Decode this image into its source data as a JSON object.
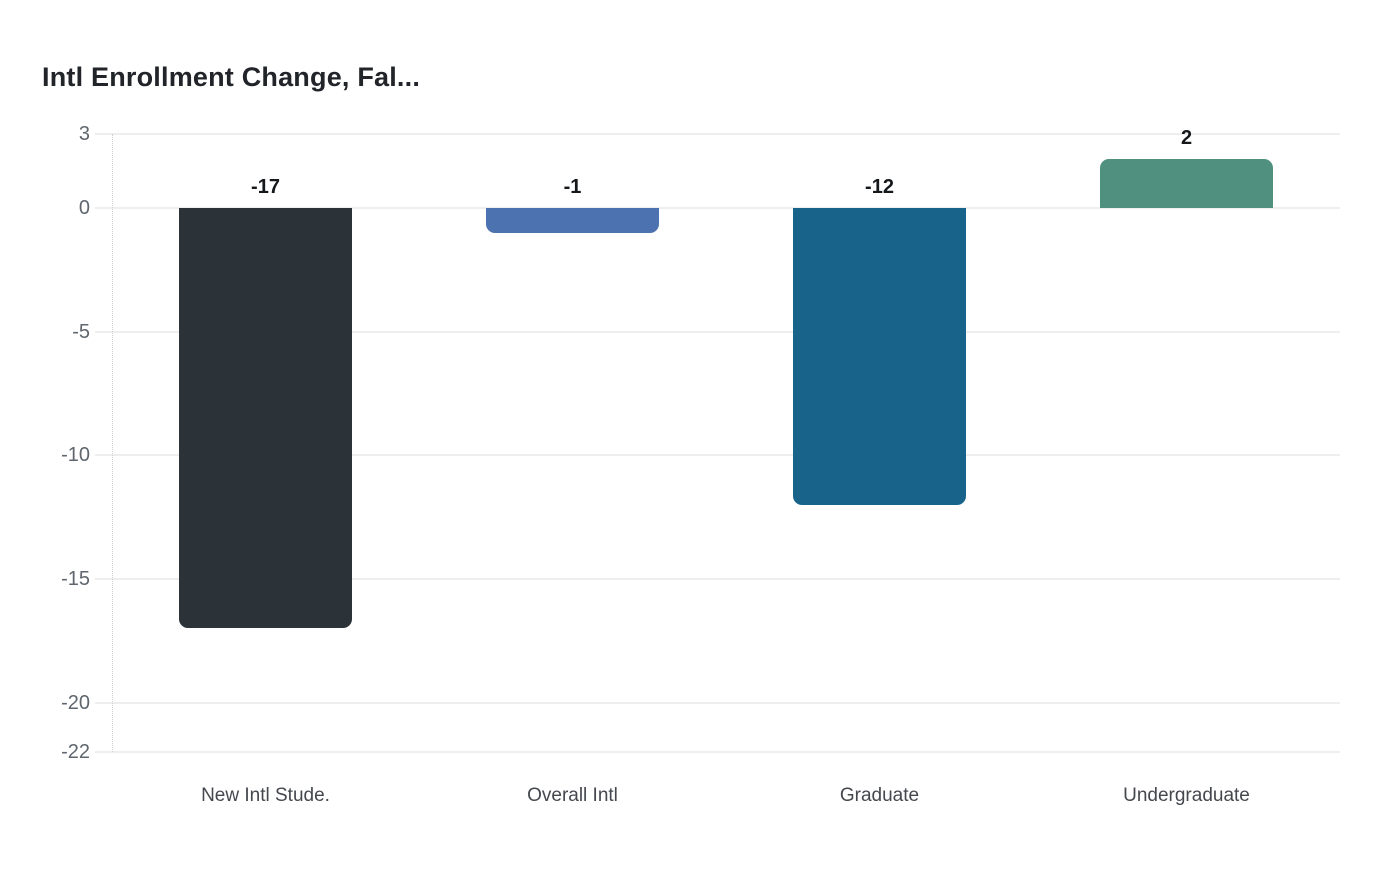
{
  "chart_data": {
    "type": "bar",
    "title": "Intl Enrollment Change, Fal...",
    "categories": [
      "New Intl Stude.",
      "Overall Intl",
      "Graduate",
      "Undergraduate"
    ],
    "values": [
      -17,
      -1,
      -12,
      2
    ],
    "value_labels": [
      "-17",
      "-1",
      "-12",
      "2"
    ],
    "bar_colors": [
      "#2b3338",
      "#4c72b0",
      "#17638a",
      "#4f907e"
    ],
    "xlabel": "",
    "ylabel": "",
    "ylim": [
      -22,
      3
    ],
    "yticks": [
      3,
      0,
      -5,
      -10,
      -15,
      -20,
      -22
    ],
    "ytick_labels": [
      "3",
      "0",
      "-5",
      "-10",
      "-15",
      "-20",
      "-22"
    ],
    "grid": "horizontal",
    "legend": "none",
    "baseline": 0
  }
}
